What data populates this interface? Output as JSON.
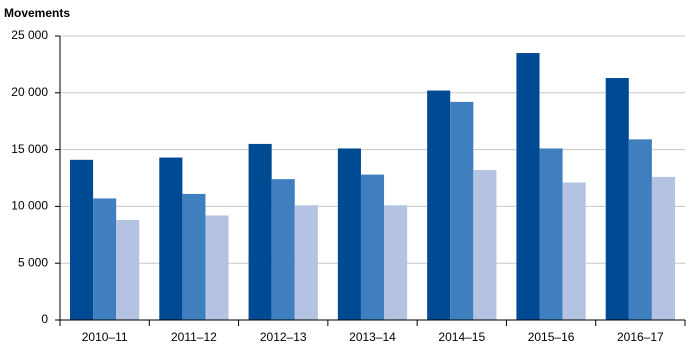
{
  "chart_data": {
    "type": "bar",
    "title": "Movements",
    "categories": [
      "2010–11",
      "2011–12",
      "2012–13",
      "2013–14",
      "2014–15",
      "2015–16",
      "2016–17"
    ],
    "series": [
      {
        "color": "#004a93",
        "values": [
          14100,
          14300,
          15500,
          15100,
          20200,
          23500,
          21300
        ]
      },
      {
        "color": "#3f7fbf",
        "values": [
          10700,
          11100,
          12400,
          12800,
          19200,
          15100,
          15900
        ]
      },
      {
        "color": "#b4c3e1",
        "values": [
          8800,
          9200,
          10100,
          10100,
          13200,
          12100,
          12600
        ]
      }
    ],
    "ylim": [
      0,
      25000
    ],
    "yticks": [
      0,
      {
        "value": 5000,
        "label": "5 000"
      },
      {
        "value": 10000,
        "label": "10 000"
      },
      {
        "value": 15000,
        "label": "15 000"
      },
      {
        "value": 20000,
        "label": "20 000"
      },
      {
        "value": 25000,
        "label": "25 000"
      }
    ],
    "grid": true
  }
}
